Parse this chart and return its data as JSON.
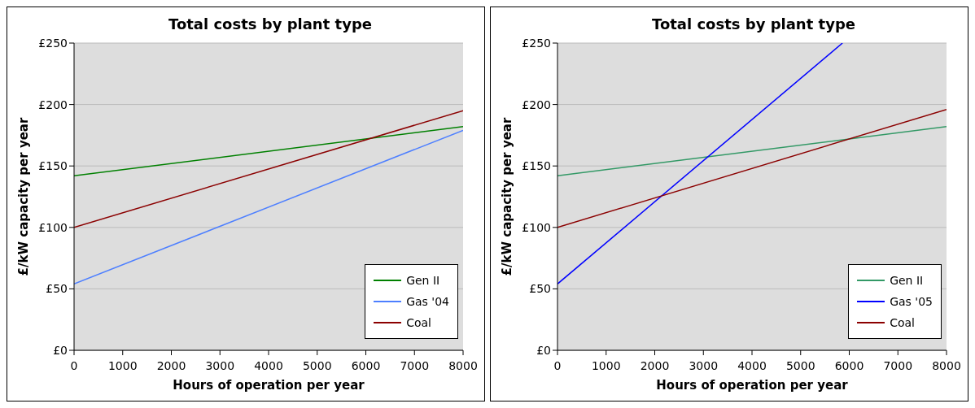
{
  "chart_data": [
    {
      "type": "line",
      "title": "Total costs by plant type",
      "xlabel": "Hours of operation per year",
      "ylabel": "£/kW capacity per year",
      "xlim": [
        0,
        8000
      ],
      "xticks": [
        0,
        1000,
        2000,
        3000,
        4000,
        5000,
        6000,
        7000,
        8000
      ],
      "ylim": [
        0,
        250
      ],
      "yticks": [
        {
          "value": 0,
          "label": "£0"
        },
        {
          "value": 50,
          "label": "£50"
        },
        {
          "value": 100,
          "label": "£100"
        },
        {
          "value": 150,
          "label": "£150"
        },
        {
          "value": 200,
          "label": "£200"
        },
        {
          "value": 250,
          "label": "£250"
        }
      ],
      "grid": "y",
      "legend": "bottom right",
      "marker": "none",
      "line_style": "solid",
      "series": [
        {
          "name": "Gen II",
          "color": "#008000",
          "x": [
            0,
            8000
          ],
          "values": [
            142,
            182
          ]
        },
        {
          "name": "Gas '04",
          "color": "#4d7fff",
          "x": [
            0,
            8000
          ],
          "values": [
            54,
            179
          ]
        },
        {
          "name": "Coal",
          "color": "#8b0000",
          "x": [
            0,
            8000
          ],
          "values": [
            100,
            195
          ]
        }
      ]
    },
    {
      "type": "line",
      "title": "Total costs by plant type",
      "xlabel": "Hours of operation per year",
      "ylabel": "£/kW capacity per year",
      "xlim": [
        0,
        8000
      ],
      "xticks": [
        0,
        1000,
        2000,
        3000,
        4000,
        5000,
        6000,
        7000,
        8000
      ],
      "ylim": [
        0,
        250
      ],
      "yticks": [
        {
          "value": 0,
          "label": "£0"
        },
        {
          "value": 50,
          "label": "£50"
        },
        {
          "value": 100,
          "label": "£100"
        },
        {
          "value": 150,
          "label": "£150"
        },
        {
          "value": 200,
          "label": "£200"
        },
        {
          "value": 250,
          "label": "£250"
        }
      ],
      "grid": "y",
      "legend": "bottom right",
      "marker": "none",
      "line_style": "solid",
      "series": [
        {
          "name": "Gen II",
          "color": "#339966",
          "x": [
            0,
            8000
          ],
          "values": [
            142,
            182
          ]
        },
        {
          "name": "Gas '05",
          "color": "#0000ff",
          "x": [
            0,
            5860
          ],
          "values": [
            54,
            250
          ]
        },
        {
          "name": "Coal",
          "color": "#8b0000",
          "x": [
            0,
            8000
          ],
          "values": [
            100,
            196
          ]
        }
      ]
    }
  ]
}
